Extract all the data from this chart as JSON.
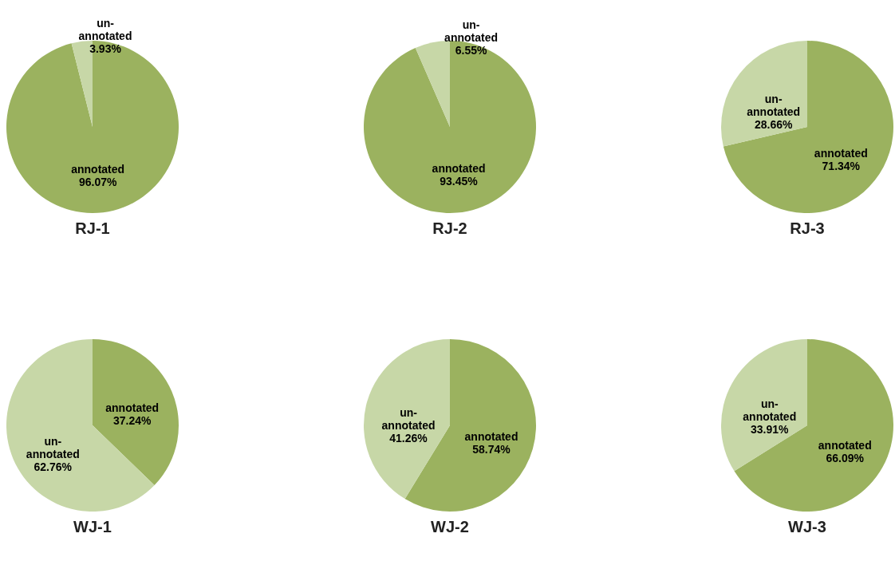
{
  "chart_data": [
    {
      "type": "pie",
      "title": "RJ-1",
      "categories": [
        "annotated",
        "un-annotated"
      ],
      "values": [
        96.07,
        3.93
      ],
      "value_labels": [
        "96.07%",
        "3.93%"
      ],
      "colors": [
        "#9bb25f",
        "#c7d7a7"
      ]
    },
    {
      "type": "pie",
      "title": "RJ-2",
      "categories": [
        "annotated",
        "un-annotated"
      ],
      "values": [
        93.45,
        6.55
      ],
      "value_labels": [
        "93.45%",
        "6.55%"
      ],
      "colors": [
        "#9bb25f",
        "#c7d7a7"
      ]
    },
    {
      "type": "pie",
      "title": "RJ-3",
      "categories": [
        "annotated",
        "un-annotated"
      ],
      "values": [
        71.34,
        28.66
      ],
      "value_labels": [
        "71.34%",
        "28.66%"
      ],
      "colors": [
        "#9bb25f",
        "#c7d7a7"
      ]
    },
    {
      "type": "pie",
      "title": "WJ-1",
      "categories": [
        "annotated",
        "un-annotated"
      ],
      "values": [
        37.24,
        62.76
      ],
      "value_labels": [
        "37.24%",
        "62.76%"
      ],
      "colors": [
        "#9bb25f",
        "#c7d7a7"
      ]
    },
    {
      "type": "pie",
      "title": "WJ-2",
      "categories": [
        "annotated",
        "un-annotated"
      ],
      "values": [
        58.74,
        41.26
      ],
      "value_labels": [
        "58.74%",
        "41.26%"
      ],
      "colors": [
        "#9bb25f",
        "#c7d7a7"
      ]
    },
    {
      "type": "pie",
      "title": "WJ-3",
      "categories": [
        "annotated",
        "un-annotated"
      ],
      "values": [
        66.09,
        33.91
      ],
      "value_labels": [
        "66.09%",
        "33.91%"
      ],
      "colors": [
        "#9bb25f",
        "#c7d7a7"
      ]
    }
  ]
}
